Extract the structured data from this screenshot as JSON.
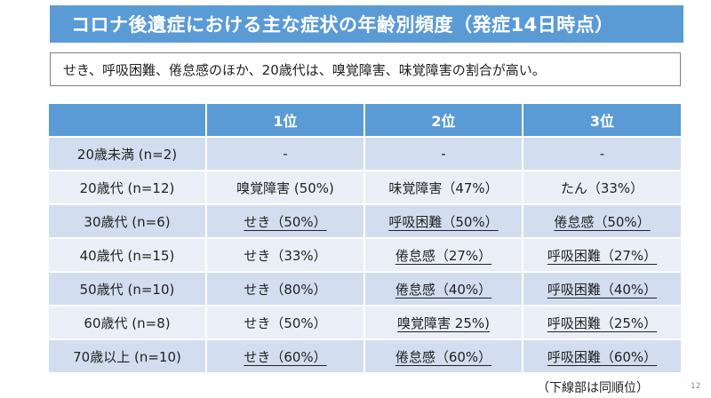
{
  "title": "コロナ後遺症における主な症状の年齢別頻度（発症14日時点）",
  "summary": "せき、呼吸困難、倦怠感のほか、20歳代は、嗅覚障害、味覚障害の割合が高い。",
  "table": {
    "headers": [
      "",
      "1位",
      "2位",
      "3位"
    ],
    "rows": [
      {
        "age": "20歳未満 (n=2)",
        "cells": [
          {
            "text": "-",
            "underline": false
          },
          {
            "text": "-",
            "underline": false
          },
          {
            "text": "-",
            "underline": false
          }
        ]
      },
      {
        "age": "20歳代 (n=12)",
        "cells": [
          {
            "text": "嗅覚障害 (50%)",
            "underline": false
          },
          {
            "text": "味覚障害（47%）",
            "underline": false
          },
          {
            "text": "たん（33%）",
            "underline": false
          }
        ]
      },
      {
        "age": "30歳代 (n=6)",
        "cells": [
          {
            "text": "せき（50%）",
            "underline": true
          },
          {
            "text": "呼吸困難（50%）",
            "underline": true
          },
          {
            "text": "倦怠感（50%）",
            "underline": true
          }
        ]
      },
      {
        "age": "40歳代 (n=15)",
        "cells": [
          {
            "text": "せき（33%）",
            "underline": false
          },
          {
            "text": "倦怠感（27%）",
            "underline": true
          },
          {
            "text": "呼吸困難（27%）",
            "underline": true
          }
        ]
      },
      {
        "age": "50歳代 (n=10)",
        "cells": [
          {
            "text": "せき（80%）",
            "underline": false
          },
          {
            "text": "倦怠感（40%）",
            "underline": true
          },
          {
            "text": "呼吸困難（40%）",
            "underline": true
          }
        ]
      },
      {
        "age": "60歳代 (n=8)",
        "cells": [
          {
            "text": "せき（50%）",
            "underline": false
          },
          {
            "text": "嗅覚障害 25%)",
            "underline": true
          },
          {
            "text": "呼吸困難（25%）",
            "underline": true
          }
        ]
      },
      {
        "age": "70歳以上 (n=10)",
        "cells": [
          {
            "text": "せき（60%）",
            "underline": true
          },
          {
            "text": "倦怠感（60%）",
            "underline": true
          },
          {
            "text": "呼吸困難（60%）",
            "underline": true
          }
        ]
      }
    ]
  },
  "note": "（下線部は同順位）",
  "page_number": "12",
  "colors": {
    "header_blue": "#5b9bd5",
    "row_dark": "#d2deef",
    "row_light": "#eaeff7"
  }
}
